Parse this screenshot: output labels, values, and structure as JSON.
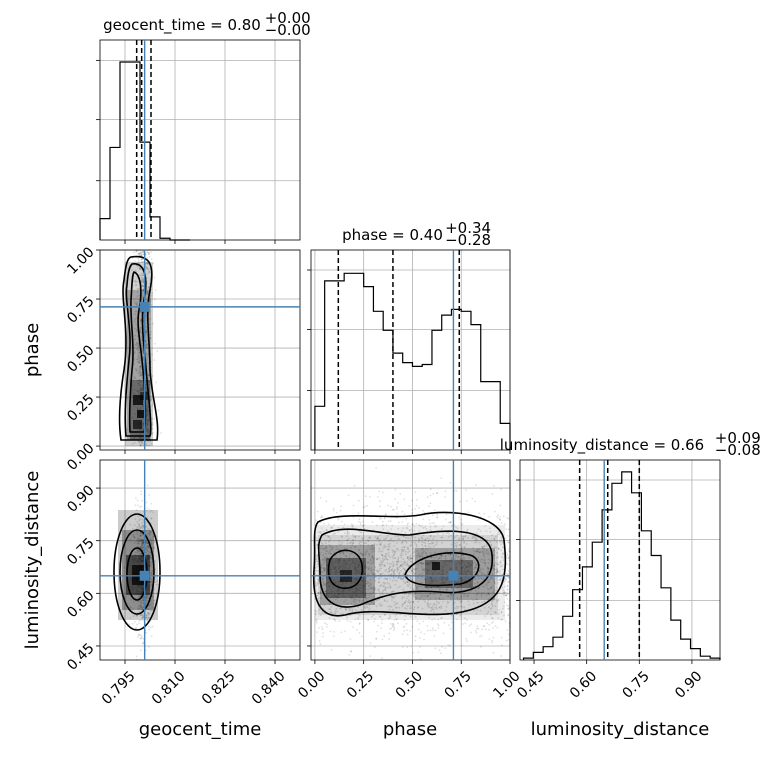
{
  "chart_data": {
    "type": "corner",
    "parameters": [
      "geocent_time",
      "phase",
      "luminosity_distance"
    ],
    "titles": [
      {
        "param": "geocent_time",
        "text": "geocent_time = 0.80",
        "plus": "+0.00",
        "minus": "−0.00"
      },
      {
        "param": "phase",
        "text": "phase = 0.40",
        "plus": "+0.34",
        "minus": "−0.28"
      },
      {
        "param": "luminosity_distance",
        "text": "luminosity_distance = 0.66",
        "plus": "+0.09",
        "minus": "−0.08"
      }
    ],
    "truths": {
      "geocent_time": 0.8,
      "phase": 0.71,
      "luminosity_distance": 0.65
    },
    "quantiles": {
      "geocent_time": [
        0.7985,
        0.8,
        0.8028
      ],
      "phase": [
        0.12,
        0.4,
        0.74
      ],
      "luminosity_distance": [
        0.58,
        0.66,
        0.75
      ]
    },
    "ranges": {
      "geocent_time": [
        0.7875,
        0.8475
      ],
      "phase": [
        -0.02,
        1.0
      ],
      "luminosity_distance": [
        0.41,
        0.98
      ]
    },
    "ticks": {
      "geocent_time": [
        "0.795",
        "0.810",
        "0.825",
        "0.840"
      ],
      "phase": [
        "0.00",
        "0.25",
        "0.50",
        "0.75",
        "1.00"
      ],
      "luminosity_distance": [
        "0.45",
        "0.60",
        "0.75",
        "0.90"
      ]
    },
    "histograms": {
      "geocent_time": {
        "edges": [
          0.7875,
          0.7905,
          0.7935,
          0.7965,
          0.7995,
          0.8025,
          0.8055,
          0.8085,
          0.8115,
          0.8145
        ],
        "counts": [
          0.12,
          0.52,
          1.0,
          1.0,
          0.55,
          0.13,
          0.01,
          0.0,
          0.0
        ]
      },
      "phase": {
        "bins": 20,
        "counts": [
          0.23,
          0.89,
          0.89,
          0.93,
          0.93,
          0.86,
          0.73,
          0.63,
          0.51,
          0.46,
          0.44,
          0.45,
          0.63,
          0.71,
          0.74,
          0.73,
          0.66,
          0.36,
          0.36,
          0.14
        ]
      },
      "luminosity_distance": {
        "bins": 20,
        "counts": [
          0.01,
          0.04,
          0.07,
          0.12,
          0.23,
          0.37,
          0.49,
          0.62,
          0.79,
          0.93,
          0.99,
          0.88,
          0.68,
          0.55,
          0.38,
          0.21,
          0.11,
          0.06,
          0.02,
          0.01
        ]
      }
    },
    "axis_labels": {
      "x": [
        "geocent_time",
        "phase",
        "luminosity_distance"
      ],
      "y": [
        "phase",
        "luminosity_distance"
      ]
    },
    "colors": {
      "truth": "#4682b4",
      "contour": "#000000",
      "density": "#000000"
    },
    "grid": true
  }
}
